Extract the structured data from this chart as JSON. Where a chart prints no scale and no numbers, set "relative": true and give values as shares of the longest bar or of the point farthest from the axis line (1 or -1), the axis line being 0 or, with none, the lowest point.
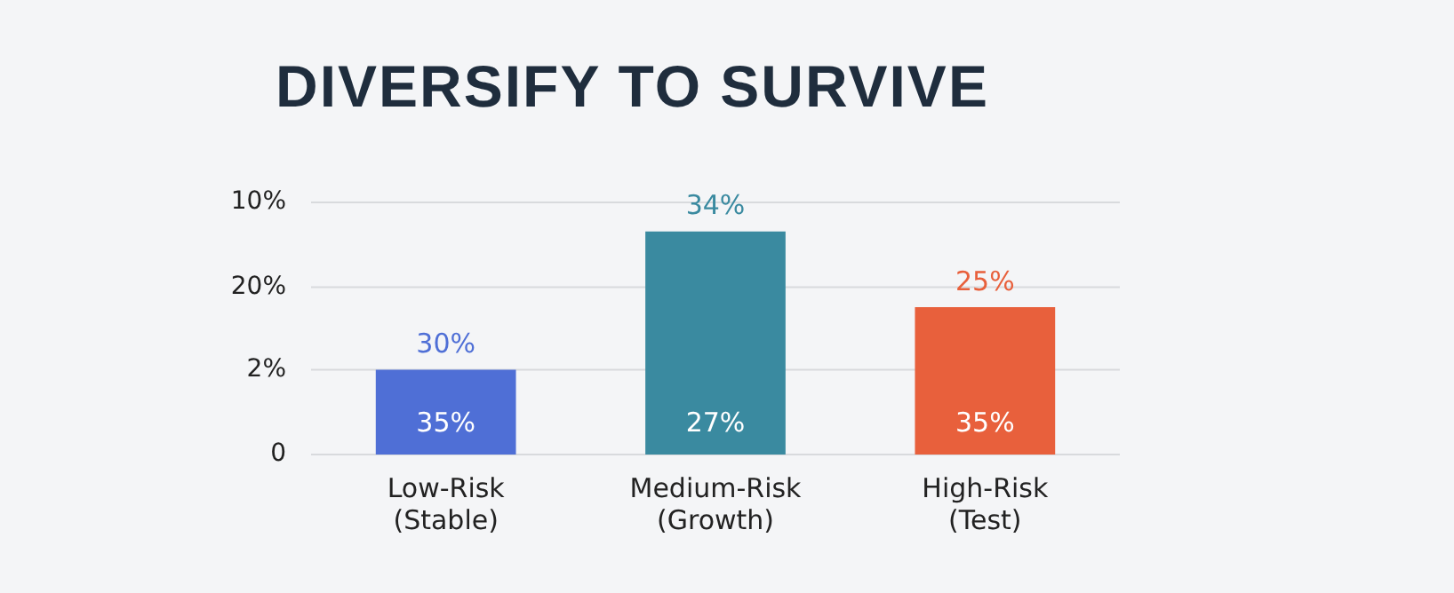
{
  "chart_data": {
    "type": "bar",
    "title": "DIVERSIFY TO SURVIVE",
    "relative": true,
    "categories": [
      "Low-Risk\n(Stable)",
      "Medium-Risk\n(Growth)",
      "High-Risk\n(Test)"
    ],
    "values": [
      0.38,
      1,
      0.66
    ],
    "colors": [
      "#4f6fd6",
      "#3a8aa0",
      "#e8603c"
    ],
    "annotations": [
      "10%",
      "20%",
      "2%",
      "0",
      "30%",
      "34%",
      "25%",
      "35%",
      "27%",
      "35%"
    ],
    "ref_lines": [
      {
        "axis": "y",
        "value": 1.13,
        "color": "#d8dadd"
      },
      {
        "axis": "y",
        "value": 0.75,
        "color": "#d8dadd"
      },
      {
        "axis": "y",
        "value": 0.38,
        "color": "#d8dadd"
      },
      {
        "axis": "y",
        "value": 0,
        "color": "#d8dadd"
      }
    ]
  }
}
